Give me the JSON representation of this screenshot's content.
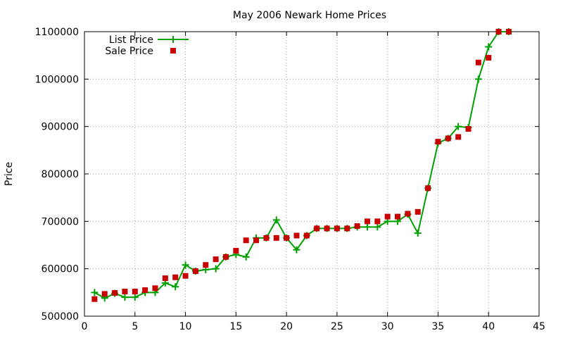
{
  "chart_data": {
    "type": "scatter",
    "title": "May 2006 Newark Home Prices",
    "xlabel": "",
    "ylabel": "Price",
    "xlim": [
      0,
      45
    ],
    "ylim": [
      500000,
      1100000
    ],
    "xticks": [
      0,
      5,
      10,
      15,
      20,
      25,
      30,
      35,
      40,
      45
    ],
    "yticks": [
      500000,
      600000,
      700000,
      800000,
      900000,
      1000000,
      1100000
    ],
    "grid": true,
    "legend_position": "top-left",
    "series": [
      {
        "name": "List Price",
        "style": "line-with-plus-markers",
        "color": "#00a000",
        "x": [
          1,
          2,
          3,
          4,
          5,
          6,
          7,
          8,
          9,
          10,
          11,
          12,
          13,
          14,
          15,
          16,
          17,
          18,
          19,
          20,
          21,
          22,
          23,
          24,
          25,
          26,
          27,
          28,
          29,
          30,
          31,
          32,
          33,
          34,
          35,
          36,
          37,
          38,
          39,
          40,
          41,
          42
        ],
        "values": [
          550000,
          538000,
          548000,
          540000,
          540000,
          550000,
          550000,
          570000,
          562000,
          608000,
          595000,
          598000,
          600000,
          625000,
          630000,
          625000,
          665000,
          665000,
          703000,
          665000,
          640000,
          670000,
          685000,
          685000,
          685000,
          685000,
          688000,
          688000,
          688000,
          700000,
          700000,
          715000,
          675000,
          770000,
          865000,
          875000,
          900000,
          898000,
          1000000,
          1068000,
          1100000,
          1100000
        ]
      },
      {
        "name": "Sale Price",
        "style": "square-markers",
        "color": "#c80000",
        "x": [
          1,
          2,
          3,
          4,
          5,
          6,
          7,
          8,
          9,
          10,
          11,
          12,
          13,
          14,
          15,
          16,
          17,
          18,
          19,
          20,
          21,
          22,
          23,
          24,
          25,
          26,
          27,
          28,
          29,
          30,
          31,
          32,
          33,
          34,
          35,
          36,
          37,
          38,
          39,
          40,
          41,
          42
        ],
        "values": [
          536000,
          547000,
          549000,
          552000,
          552000,
          555000,
          559000,
          580000,
          582000,
          585000,
          595000,
          608000,
          620000,
          625000,
          638000,
          660000,
          660000,
          665000,
          665000,
          665000,
          670000,
          670000,
          685000,
          685000,
          685000,
          685000,
          690000,
          700000,
          700000,
          710000,
          710000,
          716000,
          720000,
          770000,
          868000,
          875000,
          878000,
          895000,
          1035000,
          1045000,
          1100000,
          1100000
        ]
      }
    ]
  }
}
